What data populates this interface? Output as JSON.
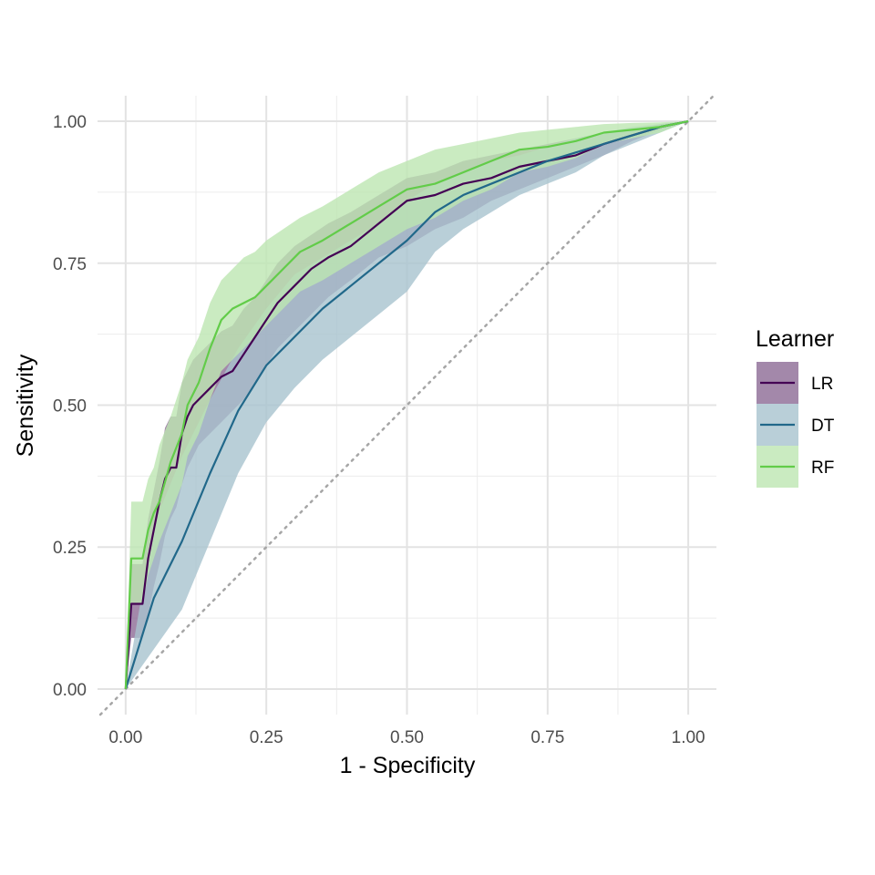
{
  "chart_data": {
    "type": "line",
    "title": "",
    "xlabel": "1 - Specificity",
    "ylabel": "Sensitivity",
    "xlim": [
      -0.05,
      1.05
    ],
    "ylim": [
      -0.045,
      1.045
    ],
    "x_ticks": [
      "0.00",
      "0.25",
      "0.50",
      "0.75",
      "1.00"
    ],
    "y_ticks": [
      "0.00",
      "0.25",
      "0.50",
      "0.75",
      "1.00"
    ],
    "grid": true,
    "legend": {
      "title": "Learner",
      "placement": "right"
    },
    "reference_line": {
      "x": [
        0,
        1
      ],
      "y": [
        0,
        1
      ],
      "style": "dotted",
      "color": "#a6a6a6"
    },
    "series": [
      {
        "name": "LR",
        "color": "#440154",
        "ribbon_color": "#8c6a95",
        "x": [
          0,
          0.01,
          0.03,
          0.04,
          0.05,
          0.06,
          0.07,
          0.08,
          0.09,
          0.1,
          0.11,
          0.12,
          0.13,
          0.15,
          0.17,
          0.19,
          0.21,
          0.23,
          0.25,
          0.27,
          0.3,
          0.33,
          0.36,
          0.4,
          0.45,
          0.5,
          0.55,
          0.6,
          0.65,
          0.7,
          0.75,
          0.8,
          0.85,
          0.9,
          0.95,
          1.0
        ],
        "y": [
          0,
          0.15,
          0.15,
          0.23,
          0.28,
          0.33,
          0.37,
          0.39,
          0.39,
          0.45,
          0.48,
          0.5,
          0.51,
          0.53,
          0.55,
          0.56,
          0.59,
          0.62,
          0.65,
          0.68,
          0.71,
          0.74,
          0.76,
          0.78,
          0.82,
          0.86,
          0.87,
          0.89,
          0.9,
          0.92,
          0.93,
          0.94,
          0.96,
          0.975,
          0.99,
          1.0
        ],
        "lower": [
          0,
          0.09,
          0.09,
          0.13,
          0.18,
          0.22,
          0.27,
          0.3,
          0.32,
          0.36,
          0.39,
          0.41,
          0.43,
          0.45,
          0.47,
          0.49,
          0.51,
          0.54,
          0.57,
          0.6,
          0.63,
          0.66,
          0.69,
          0.72,
          0.76,
          0.78,
          0.81,
          0.83,
          0.86,
          0.88,
          0.9,
          0.92,
          0.94,
          0.965,
          0.985,
          1.0
        ],
        "upper": [
          0,
          0.22,
          0.22,
          0.3,
          0.35,
          0.4,
          0.46,
          0.48,
          0.48,
          0.54,
          0.56,
          0.58,
          0.59,
          0.61,
          0.63,
          0.64,
          0.67,
          0.69,
          0.72,
          0.75,
          0.78,
          0.8,
          0.82,
          0.84,
          0.87,
          0.9,
          0.91,
          0.93,
          0.94,
          0.95,
          0.96,
          0.97,
          0.98,
          0.985,
          0.995,
          1.0
        ]
      },
      {
        "name": "DT",
        "color": "#21688a",
        "ribbon_color": "#a7c3ce",
        "x": [
          0,
          0.05,
          0.1,
          0.15,
          0.2,
          0.25,
          0.3,
          0.35,
          0.4,
          0.45,
          0.5,
          0.55,
          0.6,
          0.65,
          0.7,
          0.75,
          0.8,
          0.85,
          0.9,
          0.95,
          1.0
        ],
        "y": [
          0,
          0.16,
          0.26,
          0.38,
          0.49,
          0.57,
          0.62,
          0.67,
          0.71,
          0.75,
          0.79,
          0.84,
          0.87,
          0.89,
          0.91,
          0.93,
          0.945,
          0.96,
          0.975,
          0.99,
          1.0
        ],
        "lower": [
          0,
          0.07,
          0.14,
          0.26,
          0.38,
          0.47,
          0.53,
          0.58,
          0.62,
          0.66,
          0.7,
          0.77,
          0.81,
          0.84,
          0.87,
          0.89,
          0.91,
          0.94,
          0.96,
          0.98,
          1.0
        ],
        "upper": [
          0,
          0.29,
          0.41,
          0.51,
          0.6,
          0.67,
          0.73,
          0.76,
          0.79,
          0.82,
          0.86,
          0.89,
          0.91,
          0.93,
          0.94,
          0.955,
          0.97,
          0.98,
          0.99,
          0.995,
          1.0
        ]
      },
      {
        "name": "RF",
        "color": "#62cc49",
        "ribbon_color": "#bde6b1",
        "x": [
          0,
          0.01,
          0.02,
          0.03,
          0.04,
          0.05,
          0.06,
          0.08,
          0.1,
          0.11,
          0.13,
          0.15,
          0.17,
          0.19,
          0.21,
          0.23,
          0.25,
          0.28,
          0.31,
          0.35,
          0.4,
          0.45,
          0.5,
          0.55,
          0.6,
          0.65,
          0.7,
          0.75,
          0.8,
          0.85,
          0.9,
          0.95,
          1.0
        ],
        "y": [
          0,
          0.23,
          0.23,
          0.23,
          0.28,
          0.31,
          0.33,
          0.4,
          0.45,
          0.5,
          0.54,
          0.6,
          0.65,
          0.67,
          0.68,
          0.69,
          0.71,
          0.74,
          0.77,
          0.79,
          0.82,
          0.85,
          0.88,
          0.89,
          0.91,
          0.93,
          0.95,
          0.955,
          0.965,
          0.98,
          0.985,
          0.99,
          1.0
        ],
        "lower": [
          0,
          0.15,
          0.15,
          0.15,
          0.2,
          0.23,
          0.26,
          0.31,
          0.36,
          0.41,
          0.45,
          0.51,
          0.56,
          0.58,
          0.6,
          0.62,
          0.64,
          0.67,
          0.7,
          0.72,
          0.75,
          0.78,
          0.81,
          0.83,
          0.86,
          0.88,
          0.91,
          0.92,
          0.935,
          0.96,
          0.97,
          0.98,
          1.0
        ],
        "upper": [
          0,
          0.33,
          0.33,
          0.33,
          0.37,
          0.39,
          0.43,
          0.48,
          0.54,
          0.58,
          0.62,
          0.68,
          0.72,
          0.74,
          0.76,
          0.77,
          0.79,
          0.81,
          0.83,
          0.85,
          0.88,
          0.91,
          0.93,
          0.95,
          0.96,
          0.97,
          0.98,
          0.985,
          0.99,
          0.995,
          0.997,
          0.998,
          1.0
        ]
      }
    ]
  }
}
